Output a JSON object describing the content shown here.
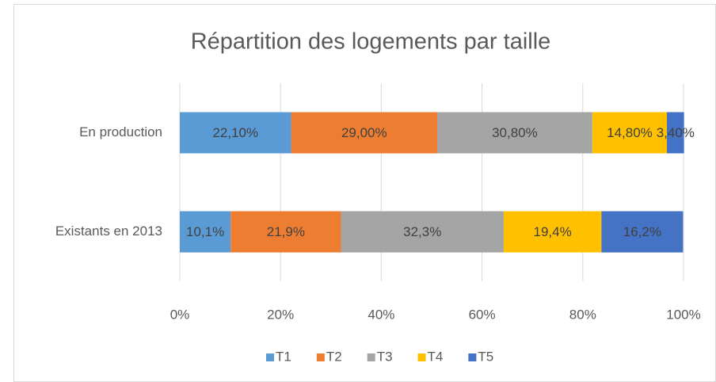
{
  "chart_data": {
    "type": "stacked-bar",
    "orientation": "horizontal",
    "title": "Répartition des logements par taille",
    "categories": [
      "En production",
      "Existants en 2013"
    ],
    "series": [
      {
        "name": "T1",
        "color": "#5b9bd5",
        "values": [
          22.1,
          10.1
        ],
        "value_labels": [
          "22,10%",
          "10,1%"
        ]
      },
      {
        "name": "T2",
        "color": "#ed7d31",
        "values": [
          29.0,
          21.9
        ],
        "value_labels": [
          "29,00%",
          "21,9%"
        ]
      },
      {
        "name": "T3",
        "color": "#a5a5a5",
        "values": [
          30.8,
          32.3
        ],
        "value_labels": [
          "30,80%",
          "32,3%"
        ]
      },
      {
        "name": "T4",
        "color": "#ffc000",
        "values": [
          14.8,
          19.4
        ],
        "value_labels": [
          "14,80%",
          "19,4%"
        ]
      },
      {
        "name": "T5",
        "color": "#4472c4",
        "values": [
          3.4,
          16.2
        ],
        "value_labels": [
          "3,40%",
          "16,2%"
        ]
      }
    ],
    "xlim": [
      0,
      100
    ],
    "xticks": [
      {
        "value": 0,
        "label": "0%"
      },
      {
        "value": 20,
        "label": "20%"
      },
      {
        "value": 40,
        "label": "40%"
      },
      {
        "value": 60,
        "label": "60%"
      },
      {
        "value": 80,
        "label": "80%"
      },
      {
        "value": 100,
        "label": "100%"
      }
    ],
    "grid": true,
    "legend": "bottom"
  }
}
